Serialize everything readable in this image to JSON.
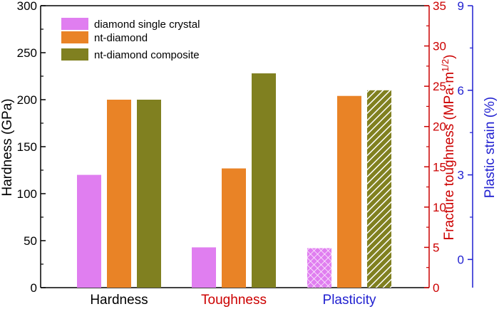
{
  "chart_data": {
    "type": "bar",
    "categories": [
      "Hardness",
      "Toughness",
      "Plasticity"
    ],
    "category_colors": [
      "#000000",
      "#cc0000",
      "#1f1fd0"
    ],
    "series": [
      {
        "name": "diamond single crystal",
        "color": "#e07ef0",
        "values": [
          120,
          5.0,
          0.4
        ]
      },
      {
        "name": "nt-diamond",
        "color": "#e98326",
        "values": [
          200,
          14.8,
          5.8
        ]
      },
      {
        "name": "nt-diamond composite",
        "color": "#808020",
        "values": [
          200,
          26.6,
          6.0
        ]
      }
    ],
    "value_axis_per_category": [
      "left",
      "right1",
      "right2"
    ],
    "axes": {
      "left": {
        "label": "Hardness (GPa)",
        "ylim": [
          0,
          300
        ],
        "ticks": [
          "0",
          "50",
          "100",
          "150",
          "200",
          "250",
          "300"
        ],
        "color": "#000000"
      },
      "right1": {
        "label_main": "Fracture toughness (MPa·m",
        "label_sup": "1/2",
        "label_end": ")",
        "ylim": [
          0,
          35
        ],
        "ticks": [
          "0",
          "5",
          "10",
          "15",
          "20",
          "25",
          "30",
          "35"
        ],
        "color": "#cc0000"
      },
      "right2": {
        "label": "Plastic strain (%)",
        "ylim": [
          -1,
          9
        ],
        "ticks": [
          "0",
          "3",
          "6",
          "9"
        ],
        "color": "#1f1fd0"
      }
    },
    "plasticity_bars_hatched": true,
    "legend_position": "top-left",
    "grid": false
  }
}
